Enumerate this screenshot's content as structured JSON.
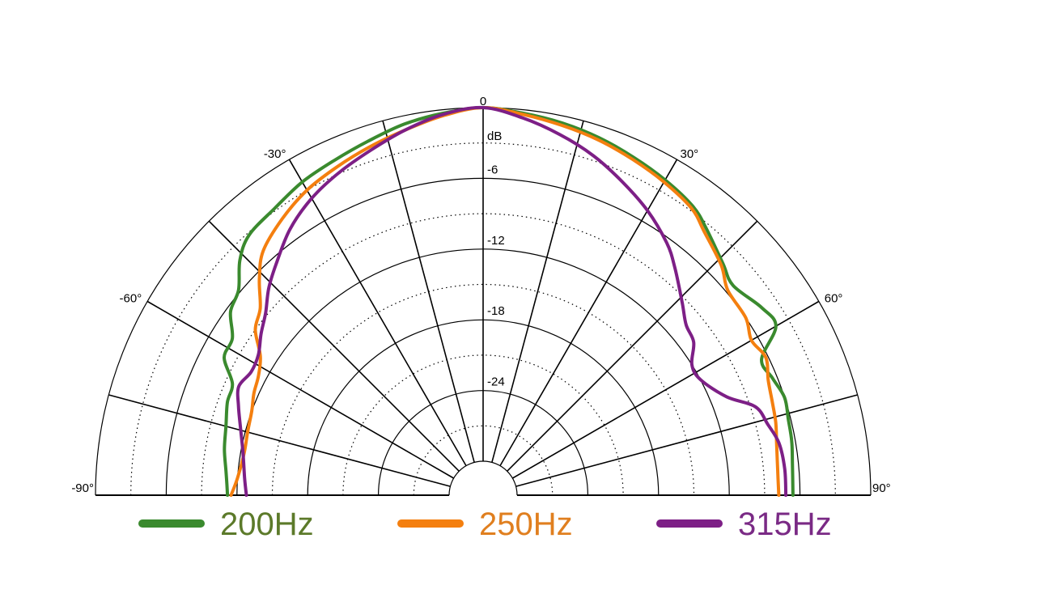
{
  "chart_data": {
    "type": "polar",
    "subtype": "half-polar directivity",
    "title": "",
    "radial_unit": "dB",
    "radial_range_db": [
      -30,
      0
    ],
    "radial_ticks": [
      0,
      -6,
      -12,
      -18,
      -24
    ],
    "radial_tick_labels": [
      "0",
      "-6",
      "-12",
      "-18",
      "-24"
    ],
    "angle_range_deg": [
      -90,
      90
    ],
    "angle_spokes_deg": [
      -90,
      -75,
      -60,
      -45,
      -30,
      -15,
      0,
      15,
      30,
      45,
      60,
      75,
      90
    ],
    "angle_labels": [
      {
        "angle": -90,
        "text": "-90°"
      },
      {
        "angle": -60,
        "text": "-60°"
      },
      {
        "angle": -30,
        "text": "-30°"
      },
      {
        "angle": 30,
        "text": "30°"
      },
      {
        "angle": 60,
        "text": "60°"
      },
      {
        "angle": 90,
        "text": "90°"
      }
    ],
    "grid": "solid rings every 6 dB, dotted rings at 3 dB offsets, solid spokes every 15°",
    "legend_position": "bottom",
    "series": [
      {
        "name": "200Hz",
        "color": "#3a8a2e",
        "text_color": "#5c7a2a",
        "points": [
          [
            -90,
            -11.2
          ],
          [
            -85,
            -11.0
          ],
          [
            -80,
            -10.6
          ],
          [
            -75,
            -10.3
          ],
          [
            -70,
            -9.8
          ],
          [
            -66,
            -9.6
          ],
          [
            -62,
            -8.0
          ],
          [
            -58,
            -7.8
          ],
          [
            -54,
            -6.4
          ],
          [
            -50,
            -5.8
          ],
          [
            -46,
            -4.2
          ],
          [
            -42,
            -3.2
          ],
          [
            -36,
            -2.8
          ],
          [
            -30,
            -2.2
          ],
          [
            -24,
            -1.8
          ],
          [
            -18,
            -1.3
          ],
          [
            -12,
            -0.7
          ],
          [
            -6,
            -0.3
          ],
          [
            0,
            0
          ],
          [
            6,
            -0.3
          ],
          [
            12,
            -0.6
          ],
          [
            18,
            -1.0
          ],
          [
            24,
            -1.5
          ],
          [
            30,
            -2.0
          ],
          [
            36,
            -2.6
          ],
          [
            40,
            -3.4
          ],
          [
            46,
            -4.6
          ],
          [
            50,
            -5.2
          ],
          [
            56,
            -4.4
          ],
          [
            60,
            -4.2
          ],
          [
            64,
            -6.6
          ],
          [
            68,
            -6.4
          ],
          [
            72,
            -6.0
          ],
          [
            76,
            -6.2
          ],
          [
            80,
            -6.3
          ],
          [
            84,
            -6.5
          ],
          [
            90,
            -6.6
          ]
        ]
      },
      {
        "name": "250Hz",
        "color": "#f47f0f",
        "text_color": "#e07f1f",
        "points": [
          [
            -90,
            -11.5
          ],
          [
            -86,
            -12.0
          ],
          [
            -80,
            -12.3
          ],
          [
            -75,
            -12.2
          ],
          [
            -70,
            -12.0
          ],
          [
            -66,
            -11.6
          ],
          [
            -62,
            -11.3
          ],
          [
            -58,
            -10.6
          ],
          [
            -54,
            -9.0
          ],
          [
            -50,
            -8.2
          ],
          [
            -46,
            -6.5
          ],
          [
            -42,
            -5.0
          ],
          [
            -36,
            -3.9
          ],
          [
            -30,
            -3.0
          ],
          [
            -24,
            -2.4
          ],
          [
            -18,
            -1.8
          ],
          [
            -12,
            -1.2
          ],
          [
            -6,
            -0.5
          ],
          [
            0,
            0
          ],
          [
            6,
            -0.4
          ],
          [
            12,
            -0.8
          ],
          [
            18,
            -1.2
          ],
          [
            24,
            -1.7
          ],
          [
            30,
            -2.2
          ],
          [
            36,
            -2.8
          ],
          [
            40,
            -3.7
          ],
          [
            46,
            -4.8
          ],
          [
            50,
            -5.8
          ],
          [
            56,
            -6.0
          ],
          [
            60,
            -6.6
          ],
          [
            64,
            -6.2
          ],
          [
            68,
            -6.8
          ],
          [
            72,
            -7.1
          ],
          [
            76,
            -7.3
          ],
          [
            80,
            -7.6
          ],
          [
            85,
            -7.8
          ],
          [
            90,
            -7.8
          ]
        ]
      },
      {
        "name": "315Hz",
        "color": "#7d1f86",
        "text_color": "#7a2a85",
        "points": [
          [
            -90,
            -12.8
          ],
          [
            -86,
            -12.6
          ],
          [
            -80,
            -12.2
          ],
          [
            -75,
            -11.6
          ],
          [
            -70,
            -10.8
          ],
          [
            -66,
            -10.2
          ],
          [
            -62,
            -10.6
          ],
          [
            -58,
            -10.4
          ],
          [
            -54,
            -9.6
          ],
          [
            -50,
            -8.8
          ],
          [
            -46,
            -7.6
          ],
          [
            -42,
            -6.6
          ],
          [
            -36,
            -5.0
          ],
          [
            -30,
            -3.8
          ],
          [
            -24,
            -2.9
          ],
          [
            -18,
            -2.1
          ],
          [
            -12,
            -1.2
          ],
          [
            -6,
            -0.4
          ],
          [
            0,
            0
          ],
          [
            6,
            -0.7
          ],
          [
            12,
            -1.6
          ],
          [
            18,
            -2.6
          ],
          [
            24,
            -3.8
          ],
          [
            30,
            -5.0
          ],
          [
            36,
            -6.4
          ],
          [
            40,
            -7.6
          ],
          [
            46,
            -9.4
          ],
          [
            50,
            -10.4
          ],
          [
            54,
            -10.8
          ],
          [
            58,
            -12.0
          ],
          [
            62,
            -12.0
          ],
          [
            68,
            -10.6
          ],
          [
            72,
            -8.6
          ],
          [
            76,
            -8.0
          ],
          [
            80,
            -7.4
          ],
          [
            85,
            -7.2
          ],
          [
            90,
            -7.2
          ]
        ]
      }
    ]
  }
}
